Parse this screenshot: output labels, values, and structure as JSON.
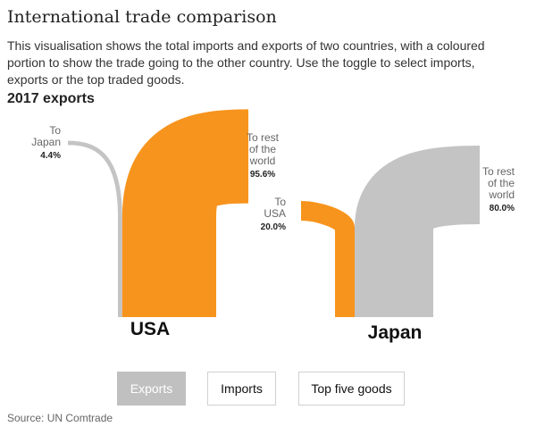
{
  "title": "International trade comparison",
  "description": "This visualisation shows the total imports and exports of two countries, with a coloured portion to show the trade going to the other country. Use the toggle to select imports, exports or the top traded goods.",
  "subtitle": "2017 exports",
  "colors": {
    "partner": "#f7941d",
    "rest": "#c4c4c4"
  },
  "chart_data": {
    "type": "flow",
    "title": "2017 exports",
    "series": [
      {
        "country": "USA",
        "flows": [
          {
            "label": "To rest of the world",
            "label_lines": [
              "To rest",
              "of the",
              "world"
            ],
            "share": 95.6,
            "display": "95.6%"
          },
          {
            "label": "To Japan",
            "label_lines": [
              "To",
              "Japan"
            ],
            "share": 4.4,
            "display": "4.4%"
          }
        ]
      },
      {
        "country": "Japan",
        "flows": [
          {
            "label": "To USA",
            "label_lines": [
              "To",
              "USA"
            ],
            "share": 20.0,
            "display": "20.0%"
          },
          {
            "label": "To rest of the world",
            "label_lines": [
              "To rest",
              "of the",
              "world"
            ],
            "share": 80.0,
            "display": "80.0%"
          }
        ]
      }
    ]
  },
  "toggles": [
    {
      "label": "Exports",
      "active": true
    },
    {
      "label": "Imports",
      "active": false
    },
    {
      "label": "Top five goods",
      "active": false
    }
  ],
  "source": "Source: UN Comtrade"
}
